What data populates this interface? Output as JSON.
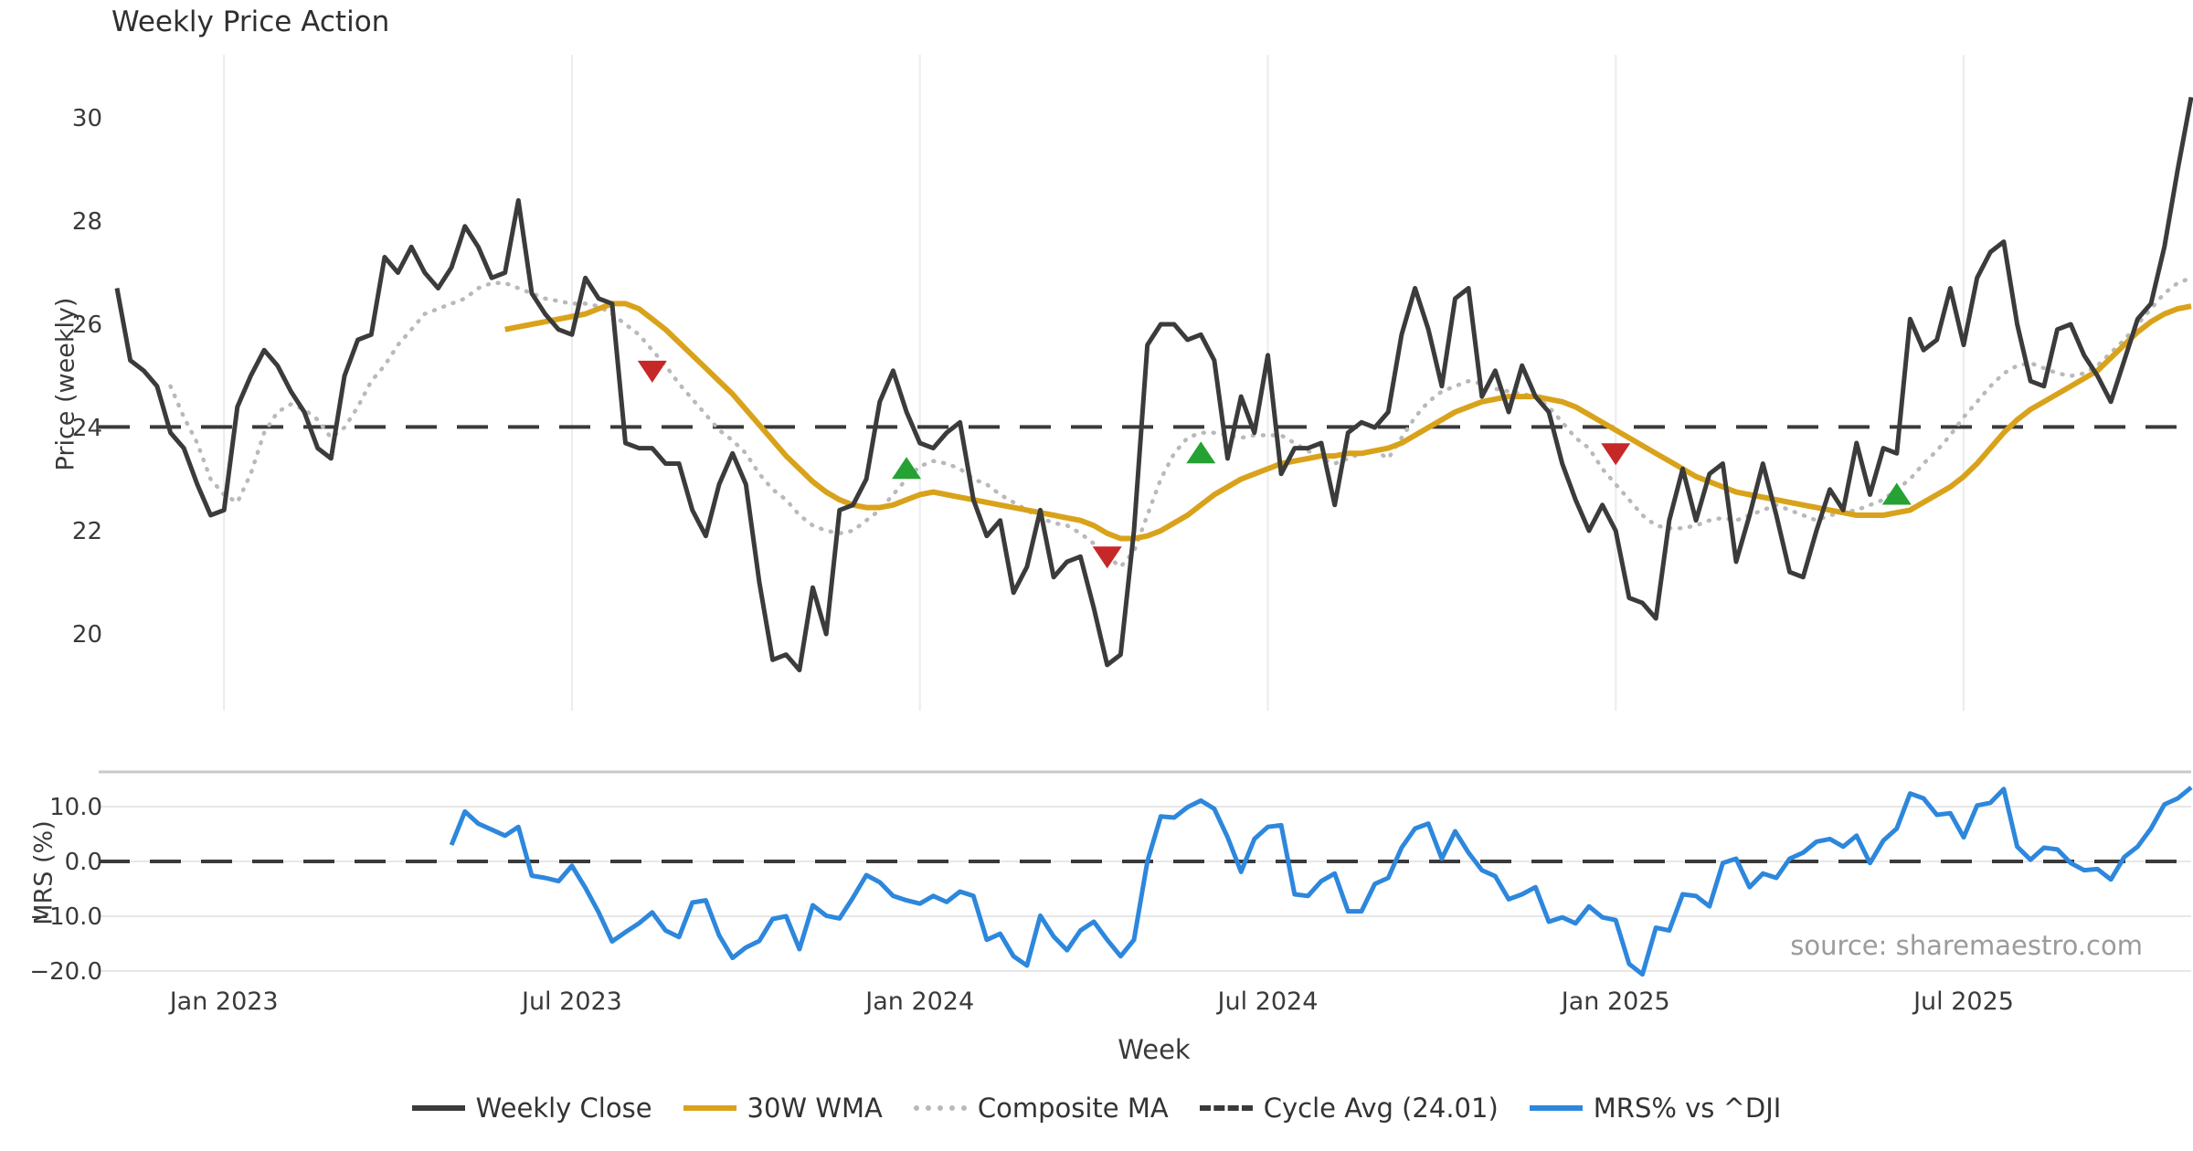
{
  "title": "Weekly Price Action",
  "xlabel": "Week",
  "source_text": "source: sharemaestro.com",
  "legend": {
    "items": [
      {
        "label": "Weekly Close",
        "swatch": "solid-dark-line"
      },
      {
        "label": "30W WMA",
        "swatch": "solid-gold-line"
      },
      {
        "label": "Composite MA",
        "swatch": "dotted-gray-line"
      },
      {
        "label": "Cycle Avg (24.01)",
        "swatch": "dashed-dark-line"
      },
      {
        "label": "MRS% vs ^DJI",
        "swatch": "solid-blue-line"
      }
    ]
  },
  "colors": {
    "close": "#3b3b3b",
    "wma": "#d9a21b",
    "composite": "#b9b9b9",
    "cycle_avg": "#3a3a3a",
    "mrs": "#2d87dc",
    "sell_marker": "#c62828",
    "buy_marker": "#25a233",
    "gridline": "#ebebf0",
    "panel_border": "#c9c9c9",
    "tick_text": "#3a3a3a"
  },
  "chart_data": [
    {
      "type": "line",
      "panel": "price",
      "ylabel": "Price (weekly)",
      "yticks": [
        20,
        22,
        24,
        26,
        28,
        30
      ],
      "ylim": [
        19.2,
        31.3
      ],
      "cycle_avg": 24.01,
      "xtick_weeks": [
        8,
        34,
        60,
        86,
        112,
        138
      ],
      "xtick_labels": [
        "Jan 2023",
        "Jul 2023",
        "Jan 2024",
        "Jul 2024",
        "Jan 2025",
        "Jul 2025"
      ],
      "grid": "vertical",
      "series": [
        {
          "name": "Weekly Close",
          "values": [
            26.7,
            25.3,
            25.1,
            24.8,
            23.9,
            23.6,
            22.9,
            22.3,
            22.4,
            24.4,
            25.0,
            25.5,
            25.2,
            24.7,
            24.3,
            23.6,
            23.4,
            25.0,
            25.7,
            25.8,
            27.3,
            27.0,
            27.5,
            27.0,
            26.7,
            27.1,
            27.9,
            27.5,
            26.9,
            27.0,
            28.4,
            26.6,
            26.2,
            25.9,
            25.8,
            26.9,
            26.5,
            26.4,
            23.7,
            23.6,
            23.6,
            23.3,
            23.3,
            22.4,
            21.9,
            22.9,
            23.5,
            22.9,
            21.0,
            19.5,
            19.6,
            19.3,
            20.9,
            20.0,
            22.4,
            22.5,
            23.0,
            24.5,
            25.1,
            24.3,
            23.7,
            23.6,
            23.9,
            24.1,
            22.6,
            21.9,
            22.2,
            20.8,
            21.3,
            22.4,
            21.1,
            21.4,
            21.5,
            20.5,
            19.4,
            19.6,
            22.0,
            25.6,
            26.0,
            26.0,
            25.7,
            25.8,
            25.3,
            23.4,
            24.6,
            23.9,
            25.4,
            23.1,
            23.6,
            23.6,
            23.7,
            22.5,
            23.9,
            24.1,
            24.0,
            24.3,
            25.8,
            26.7,
            25.9,
            24.8,
            26.5,
            26.7,
            24.6,
            25.1,
            24.3,
            25.2,
            24.6,
            24.3,
            23.3,
            22.6,
            22.0,
            22.5,
            22.0,
            20.7,
            20.6,
            20.3,
            22.2,
            23.2,
            22.2,
            23.1,
            23.3,
            21.4,
            22.3,
            23.3,
            22.3,
            21.2,
            21.1,
            22.0,
            22.8,
            22.4,
            23.7,
            22.7,
            23.6,
            23.5,
            26.1,
            25.5,
            25.7,
            26.7,
            25.6,
            26.9,
            27.4,
            27.6,
            26.0,
            24.9,
            24.8,
            25.9,
            26.0,
            25.4,
            25.0,
            24.5,
            25.3,
            26.1,
            26.4,
            27.5,
            29.0,
            30.4
          ]
        },
        {
          "name": "30W WMA",
          "values": [
            null,
            null,
            null,
            null,
            null,
            null,
            null,
            null,
            null,
            null,
            null,
            null,
            null,
            null,
            null,
            null,
            null,
            null,
            null,
            null,
            null,
            null,
            null,
            null,
            null,
            null,
            null,
            null,
            null,
            25.9,
            25.95,
            26.0,
            26.05,
            26.1,
            26.15,
            26.2,
            26.3,
            26.4,
            26.4,
            26.3,
            26.1,
            25.9,
            25.65,
            25.4,
            25.15,
            24.9,
            24.65,
            24.35,
            24.05,
            23.75,
            23.45,
            23.2,
            22.95,
            22.75,
            22.6,
            22.5,
            22.45,
            22.45,
            22.5,
            22.6,
            22.7,
            22.75,
            22.7,
            22.65,
            22.6,
            22.55,
            22.5,
            22.45,
            22.4,
            22.35,
            22.3,
            22.25,
            22.2,
            22.1,
            21.95,
            21.85,
            21.85,
            21.9,
            22.0,
            22.15,
            22.3,
            22.5,
            22.7,
            22.85,
            23.0,
            23.1,
            23.2,
            23.3,
            23.35,
            23.4,
            23.45,
            23.45,
            23.5,
            23.5,
            23.55,
            23.6,
            23.7,
            23.85,
            24.0,
            24.15,
            24.3,
            24.4,
            24.5,
            24.55,
            24.6,
            24.6,
            24.6,
            24.55,
            24.5,
            24.4,
            24.25,
            24.1,
            23.95,
            23.8,
            23.65,
            23.5,
            23.35,
            23.2,
            23.05,
            22.95,
            22.85,
            22.75,
            22.7,
            22.65,
            22.6,
            22.55,
            22.5,
            22.45,
            22.4,
            22.35,
            22.3,
            22.3,
            22.3,
            22.35,
            22.4,
            22.55,
            22.7,
            22.85,
            23.05,
            23.3,
            23.6,
            23.9,
            24.15,
            24.35,
            24.5,
            24.65,
            24.8,
            24.95,
            25.1,
            25.35,
            25.6,
            25.85,
            26.05,
            26.2,
            26.3,
            26.35
          ]
        },
        {
          "name": "Composite MA",
          "values": [
            null,
            null,
            null,
            null,
            24.8,
            24.2,
            23.7,
            23.0,
            22.7,
            22.55,
            23.1,
            23.9,
            24.3,
            24.45,
            24.35,
            24.15,
            23.8,
            24.0,
            24.4,
            24.9,
            25.2,
            25.6,
            25.9,
            26.2,
            26.3,
            26.4,
            26.5,
            26.7,
            26.8,
            26.8,
            26.7,
            26.6,
            26.5,
            26.45,
            26.4,
            26.4,
            26.35,
            26.2,
            26.0,
            25.8,
            25.5,
            25.2,
            24.85,
            24.55,
            24.25,
            23.95,
            23.75,
            23.5,
            23.1,
            22.8,
            22.6,
            22.3,
            22.1,
            22.0,
            21.95,
            22.0,
            22.2,
            22.4,
            22.7,
            23.0,
            23.25,
            23.35,
            23.3,
            23.2,
            23.0,
            22.9,
            22.7,
            22.55,
            22.4,
            22.25,
            22.15,
            22.1,
            21.95,
            21.75,
            21.5,
            21.3,
            21.6,
            22.3,
            23.0,
            23.5,
            23.8,
            23.9,
            23.9,
            23.85,
            23.8,
            23.85,
            23.85,
            23.85,
            23.7,
            23.55,
            23.4,
            23.3,
            23.4,
            23.5,
            23.55,
            23.4,
            23.8,
            24.2,
            24.5,
            24.7,
            24.8,
            24.9,
            24.85,
            24.75,
            24.7,
            24.65,
            24.6,
            24.4,
            24.1,
            23.8,
            23.6,
            23.2,
            22.9,
            22.6,
            22.3,
            22.1,
            22.05,
            22.05,
            22.1,
            22.2,
            22.25,
            22.2,
            22.3,
            22.4,
            22.5,
            22.4,
            22.3,
            22.2,
            22.3,
            22.35,
            22.4,
            22.5,
            22.6,
            22.8,
            23.0,
            23.3,
            23.55,
            23.85,
            24.2,
            24.5,
            24.8,
            25.05,
            25.2,
            25.25,
            25.15,
            25.05,
            25.0,
            25.05,
            25.2,
            25.45,
            25.7,
            26.0,
            26.3,
            26.6,
            26.8,
            26.9
          ]
        }
      ],
      "markers": {
        "sell": [
          {
            "week": 40,
            "value": 25.1
          },
          {
            "week": 74,
            "value": 21.5
          },
          {
            "week": 112,
            "value": 23.5
          }
        ],
        "buy": [
          {
            "week": 59,
            "value": 23.2
          },
          {
            "week": 81,
            "value": 23.5
          },
          {
            "week": 133,
            "value": 22.7
          }
        ]
      }
    },
    {
      "type": "line",
      "panel": "mrs",
      "ylabel": "MRS (%)",
      "yticks": [
        10.0,
        0.0,
        -10.0,
        -20.0
      ],
      "ytick_labels": [
        "10.0",
        "0.0",
        "−10.0",
        "−20.0"
      ],
      "ylim": [
        -22,
        16.3
      ],
      "zero_line": 0.0,
      "grid": "horizontal",
      "series": [
        {
          "name": "MRS% vs ^DJI",
          "values": [
            null,
            null,
            null,
            null,
            null,
            null,
            null,
            null,
            null,
            null,
            null,
            null,
            null,
            null,
            null,
            null,
            null,
            null,
            null,
            null,
            null,
            null,
            null,
            null,
            null,
            3.0,
            9.1,
            6.9,
            5.8,
            4.7,
            6.3,
            -2.6,
            -3.0,
            -3.6,
            -0.8,
            -4.8,
            -9.3,
            -14.6,
            -12.9,
            -11.3,
            -9.3,
            -12.6,
            -13.8,
            -7.5,
            -7.1,
            -13.5,
            -17.6,
            -15.7,
            -14.5,
            -10.5,
            -10.0,
            -16.0,
            -8.0,
            -9.9,
            -10.4,
            -6.6,
            -2.5,
            -3.8,
            -6.3,
            -7.1,
            -7.7,
            -6.3,
            -7.4,
            -5.5,
            -6.3,
            -14.3,
            -13.2,
            -17.3,
            -19.0,
            -9.9,
            -13.7,
            -16.2,
            -12.6,
            -11.0,
            -14.3,
            -17.3,
            -14.3,
            0.0,
            8.2,
            8.0,
            9.9,
            11.1,
            9.6,
            4.4,
            -1.9,
            4.1,
            6.3,
            6.6,
            -6.0,
            -6.3,
            -3.6,
            -2.2,
            -9.1,
            -9.1,
            -4.1,
            -3.0,
            2.5,
            6.0,
            6.9,
            0.5,
            5.5,
            1.6,
            -1.6,
            -2.7,
            -6.9,
            -6.0,
            -4.7,
            -11.0,
            -10.2,
            -11.3,
            -8.2,
            -10.2,
            -10.7,
            -18.7,
            -20.6,
            -12.1,
            -12.6,
            -6.0,
            -6.3,
            -8.2,
            -0.3,
            0.5,
            -4.7,
            -2.2,
            -3.0,
            0.5,
            1.6,
            3.6,
            4.1,
            2.7,
            4.7,
            -0.3,
            3.8,
            6.0,
            12.4,
            11.5,
            8.5,
            8.8,
            4.4,
            10.2,
            10.7,
            13.2,
            2.7,
            0.3,
            2.5,
            2.2,
            -0.3,
            -1.6,
            -1.4,
            -3.3,
            0.8,
            2.7,
            6.0,
            10.4,
            11.5,
            13.5
          ]
        }
      ]
    }
  ]
}
